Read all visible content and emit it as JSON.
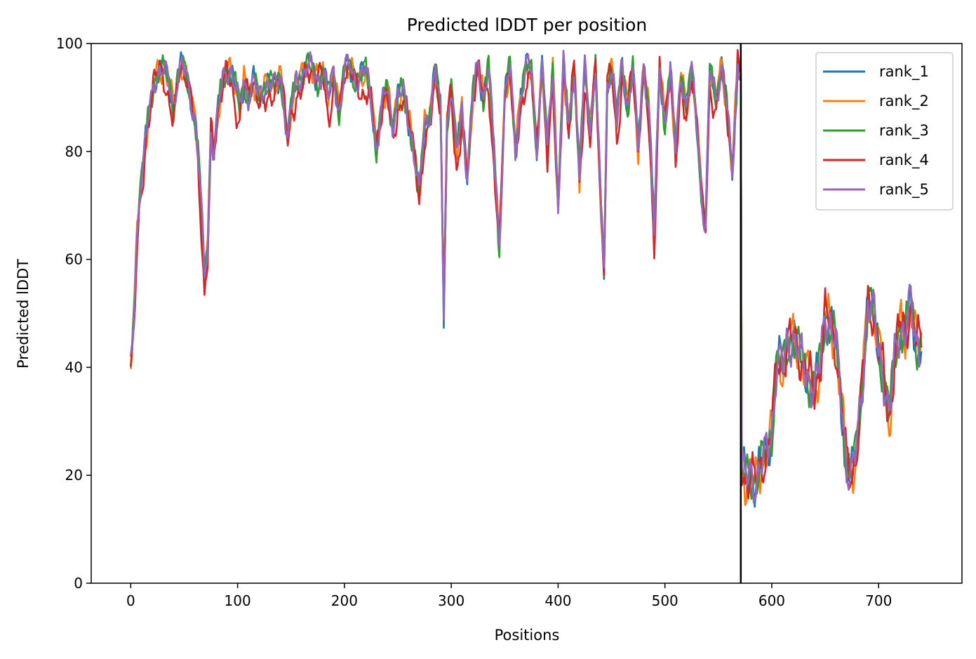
{
  "chart_data": {
    "type": "line",
    "title": "Predicted lDDT per position",
    "xlabel": "Positions",
    "ylabel": "Predicted lDDT",
    "xlim": [
      -37,
      778
    ],
    "ylim": [
      0,
      100
    ],
    "xticks": [
      0,
      100,
      200,
      300,
      400,
      500,
      600,
      700
    ],
    "yticks": [
      0,
      20,
      40,
      60,
      80,
      100
    ],
    "grid": false,
    "legend_position": "top-right",
    "vline_x": 571,
    "x_max": 740,
    "anchors": [
      [
        0,
        40
      ],
      [
        3,
        50
      ],
      [
        6,
        65
      ],
      [
        9,
        74
      ],
      [
        12,
        78
      ],
      [
        15,
        84
      ],
      [
        18,
        88
      ],
      [
        22,
        93
      ],
      [
        26,
        95
      ],
      [
        30,
        95
      ],
      [
        34,
        94
      ],
      [
        37,
        92
      ],
      [
        40,
        88
      ],
      [
        44,
        94
      ],
      [
        48,
        96
      ],
      [
        52,
        94
      ],
      [
        56,
        90
      ],
      [
        60,
        86
      ],
      [
        63,
        80
      ],
      [
        66,
        70
      ],
      [
        69,
        57
      ],
      [
        72,
        62
      ],
      [
        75,
        84
      ],
      [
        78,
        80
      ],
      [
        82,
        88
      ],
      [
        86,
        93
      ],
      [
        90,
        95
      ],
      [
        94,
        95
      ],
      [
        98,
        92
      ],
      [
        102,
        88
      ],
      [
        106,
        93
      ],
      [
        110,
        90
      ],
      [
        115,
        93
      ],
      [
        120,
        90
      ],
      [
        125,
        92
      ],
      [
        130,
        93
      ],
      [
        135,
        92
      ],
      [
        140,
        94
      ],
      [
        144,
        88
      ],
      [
        147,
        82
      ],
      [
        150,
        88
      ],
      [
        155,
        93
      ],
      [
        160,
        94
      ],
      [
        165,
        96
      ],
      [
        170,
        95
      ],
      [
        175,
        93
      ],
      [
        180,
        95
      ],
      [
        185,
        90
      ],
      [
        190,
        95
      ],
      [
        195,
        87
      ],
      [
        200,
        95
      ],
      [
        205,
        96
      ],
      [
        210,
        93
      ],
      [
        215,
        94
      ],
      [
        220,
        95
      ],
      [
        225,
        90
      ],
      [
        230,
        80
      ],
      [
        235,
        88
      ],
      [
        240,
        92
      ],
      [
        245,
        85
      ],
      [
        250,
        90
      ],
      [
        255,
        91
      ],
      [
        260,
        86
      ],
      [
        265,
        80
      ],
      [
        270,
        72
      ],
      [
        275,
        85
      ],
      [
        280,
        87
      ],
      [
        285,
        95
      ],
      [
        290,
        88
      ],
      [
        293,
        50
      ],
      [
        296,
        85
      ],
      [
        300,
        92
      ],
      [
        305,
        80
      ],
      [
        310,
        88
      ],
      [
        315,
        75
      ],
      [
        320,
        90
      ],
      [
        325,
        96
      ],
      [
        330,
        90
      ],
      [
        335,
        96
      ],
      [
        340,
        80
      ],
      [
        345,
        62
      ],
      [
        350,
        90
      ],
      [
        355,
        96
      ],
      [
        360,
        80
      ],
      [
        365,
        90
      ],
      [
        370,
        96
      ],
      [
        375,
        95
      ],
      [
        380,
        80
      ],
      [
        385,
        96
      ],
      [
        390,
        80
      ],
      [
        395,
        96
      ],
      [
        400,
        70
      ],
      [
        405,
        96
      ],
      [
        410,
        84
      ],
      [
        415,
        96
      ],
      [
        420,
        75
      ],
      [
        425,
        96
      ],
      [
        430,
        84
      ],
      [
        435,
        96
      ],
      [
        440,
        70
      ],
      [
        443,
        58
      ],
      [
        446,
        92
      ],
      [
        450,
        96
      ],
      [
        455,
        86
      ],
      [
        460,
        96
      ],
      [
        465,
        88
      ],
      [
        470,
        96
      ],
      [
        475,
        80
      ],
      [
        480,
        96
      ],
      [
        485,
        88
      ],
      [
        490,
        65
      ],
      [
        495,
        96
      ],
      [
        500,
        85
      ],
      [
        505,
        95
      ],
      [
        510,
        80
      ],
      [
        515,
        95
      ],
      [
        520,
        88
      ],
      [
        525,
        95
      ],
      [
        530,
        85
      ],
      [
        535,
        70
      ],
      [
        538,
        66
      ],
      [
        542,
        95
      ],
      [
        548,
        90
      ],
      [
        553,
        96
      ],
      [
        558,
        88
      ],
      [
        563,
        76
      ],
      [
        568,
        96
      ],
      [
        571,
        95
      ],
      [
        572,
        22
      ],
      [
        575,
        19
      ],
      [
        580,
        20
      ],
      [
        585,
        19
      ],
      [
        590,
        22
      ],
      [
        595,
        24
      ],
      [
        600,
        28
      ],
      [
        605,
        42
      ],
      [
        610,
        40
      ],
      [
        615,
        44
      ],
      [
        620,
        46
      ],
      [
        625,
        43
      ],
      [
        630,
        40
      ],
      [
        635,
        38
      ],
      [
        640,
        36
      ],
      [
        645,
        40
      ],
      [
        650,
        50
      ],
      [
        655,
        48
      ],
      [
        660,
        44
      ],
      [
        665,
        34
      ],
      [
        670,
        22
      ],
      [
        675,
        20
      ],
      [
        680,
        26
      ],
      [
        685,
        38
      ],
      [
        690,
        52
      ],
      [
        695,
        50
      ],
      [
        700,
        44
      ],
      [
        705,
        38
      ],
      [
        710,
        30
      ],
      [
        715,
        42
      ],
      [
        720,
        48
      ],
      [
        725,
        46
      ],
      [
        730,
        52
      ],
      [
        735,
        45
      ],
      [
        740,
        44
      ]
    ],
    "series": [
      {
        "name": "rank_1",
        "color": "#1f77b4"
      },
      {
        "name": "rank_2",
        "color": "#ff7f0e"
      },
      {
        "name": "rank_3",
        "color": "#2ca02c"
      },
      {
        "name": "rank_4",
        "color": "#d62728"
      },
      {
        "name": "rank_5",
        "color": "#9467bd"
      }
    ]
  }
}
